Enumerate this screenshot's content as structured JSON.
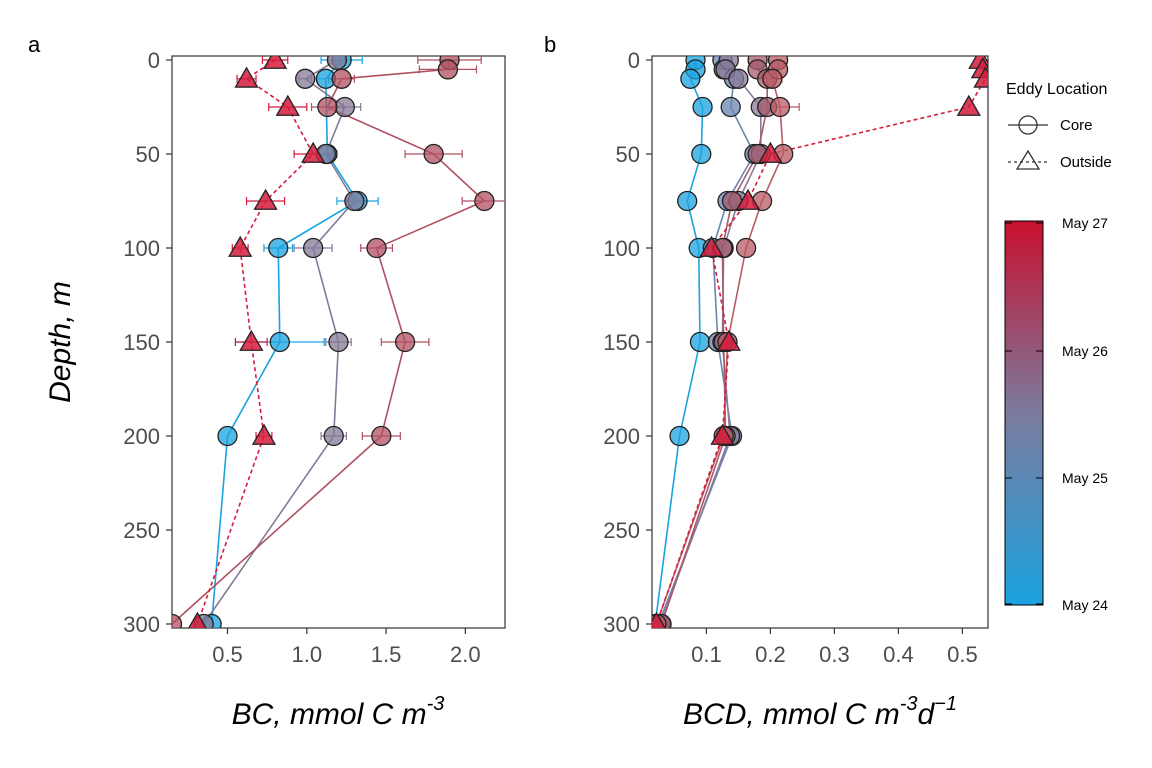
{
  "panels": {
    "a": {
      "tag": "a",
      "xlabel": "BC, mmol C m",
      "xlabel_sup": "-3"
    },
    "b": {
      "tag": "b",
      "xlabel": "BCD, mmol C m",
      "xlabel_sup1": "-3",
      "xlabel_mid": "d",
      "xlabel_sup2": "−1"
    }
  },
  "ylabel": "Depth, m",
  "legend": {
    "title": "Eddy Location",
    "items": [
      "Core",
      "Outside"
    ],
    "colorbar_labels": [
      "May 27",
      "May 26",
      "May 25",
      "May 24"
    ],
    "colorbar_colors": {
      "top": "#c8102e",
      "mid": "#7b7b9e",
      "bottom": "#1aa3e0"
    }
  },
  "chart_data": [
    {
      "panel": "a",
      "type": "scatter",
      "xlabel": "BC, mmol C m-3",
      "ylabel": "Depth, m",
      "xlim": [
        0.15,
        2.25
      ],
      "ylim": [
        300,
        0
      ],
      "x_ticks": [
        0.5,
        1.0,
        1.5,
        2.0
      ],
      "x_tick_labels": [
        "0.5",
        "1.0",
        "1.5",
        "2.0"
      ],
      "y_ticks": [
        0,
        50,
        100,
        150,
        200,
        250,
        300
      ],
      "y_tick_labels": [
        "0",
        "50",
        "100",
        "150",
        "200",
        "250",
        "300"
      ],
      "series": [
        {
          "location": "Core",
          "date": "May 24",
          "color": "#1aa3e0",
          "depth": [
            0,
            10,
            50,
            75,
            100,
            150,
            200,
            300
          ],
          "x": [
            1.22,
            1.12,
            1.13,
            1.32,
            0.82,
            0.83,
            0.5,
            0.4
          ],
          "err": [
            0.13,
            0.05,
            0.06,
            0.13,
            0.09,
            0.28,
            0,
            0
          ]
        },
        {
          "location": "Core",
          "date": "May 25",
          "color": "#857a96",
          "depth": [
            0,
            10,
            25,
            50,
            75,
            100,
            150,
            200,
            300
          ],
          "x": [
            1.19,
            0.99,
            1.24,
            1.12,
            1.3,
            1.04,
            1.2,
            1.17,
            0.35
          ],
          "err": [
            0.05,
            0.04,
            0.1,
            0.05,
            0.05,
            0.12,
            0.08,
            0.08,
            0
          ]
        },
        {
          "location": "Core",
          "date": "May 26",
          "color": "#b05060",
          "depth": [
            0,
            5,
            10,
            25,
            50,
            75,
            100,
            150,
            200,
            300
          ],
          "x": [
            1.9,
            1.89,
            1.22,
            1.13,
            1.8,
            2.12,
            1.44,
            1.62,
            1.47,
            0.15
          ],
          "err": [
            0.2,
            0.18,
            0.08,
            0.1,
            0.18,
            0.14,
            0.1,
            0.15,
            0.12,
            0
          ]
        },
        {
          "location": "Outside",
          "date": "May 27",
          "color": "#d41c3c",
          "depth": [
            0,
            10,
            25,
            50,
            75,
            100,
            150,
            200,
            300
          ],
          "x": [
            0.8,
            0.62,
            0.88,
            1.04,
            0.74,
            0.58,
            0.65,
            0.73,
            0.31
          ],
          "err": [
            0.08,
            0.06,
            0.12,
            0.12,
            0.12,
            0.05,
            0.1,
            0.05,
            0
          ]
        }
      ]
    },
    {
      "panel": "b",
      "type": "scatter",
      "xlabel": "BCD, mmol C m-3 d-1",
      "ylabel": "Depth, m",
      "xlim": [
        0.015,
        0.54
      ],
      "ylim": [
        300,
        0
      ],
      "x_ticks": [
        0.1,
        0.2,
        0.3,
        0.4,
        0.5
      ],
      "x_tick_labels": [
        "0.1",
        "0.2",
        "0.3",
        "0.4",
        "0.5"
      ],
      "y_ticks": [
        0,
        50,
        100,
        150,
        200,
        250,
        300
      ],
      "y_tick_labels": [
        "0",
        "50",
        "100",
        "150",
        "200",
        "250",
        "300"
      ],
      "series": [
        {
          "location": "Core",
          "date": "May 24",
          "color": "#1aa3e0",
          "depth": [
            0,
            5,
            10,
            25,
            50,
            75,
            100,
            150,
            200,
            300
          ],
          "x": [
            0.083,
            0.083,
            0.075,
            0.094,
            0.092,
            0.07,
            0.088,
            0.09,
            0.058,
            0.02
          ],
          "err": [
            0,
            0,
            0,
            0,
            0,
            0,
            0,
            0,
            0,
            0
          ]
        },
        {
          "location": "Core",
          "date": "May 24",
          "color": "#6a86b0",
          "depth": [
            0,
            5,
            10,
            25,
            50,
            75,
            100,
            150,
            200,
            300
          ],
          "x": [
            0.125,
            0.127,
            0.143,
            0.138,
            0.175,
            0.133,
            0.11,
            0.118,
            0.14,
            0.025
          ],
          "err": [
            0,
            0,
            0,
            0,
            0,
            0,
            0,
            0,
            0,
            0
          ]
        },
        {
          "location": "Core",
          "date": "May 25",
          "color": "#8a7a98",
          "depth": [
            0,
            5,
            10,
            25,
            50,
            75,
            100,
            150,
            200,
            300
          ],
          "x": [
            0.135,
            0.13,
            0.15,
            0.185,
            0.185,
            0.15,
            0.127,
            0.125,
            0.137,
            0.028
          ],
          "err": [
            0,
            0,
            0,
            0,
            0,
            0,
            0,
            0,
            0,
            0
          ]
        },
        {
          "location": "Core",
          "date": "May 26",
          "color": "#a65c6c",
          "depth": [
            0,
            5,
            10,
            25,
            50,
            75,
            100,
            150,
            200,
            300
          ],
          "x": [
            0.18,
            0.18,
            0.195,
            0.195,
            0.18,
            0.14,
            0.125,
            0.127,
            0.13,
            0.03
          ],
          "err": [
            0,
            0,
            0,
            0,
            0,
            0,
            0,
            0,
            0,
            0
          ]
        },
        {
          "location": "Core",
          "date": "May 26",
          "color": "#b95a64",
          "depth": [
            0,
            5,
            10,
            25,
            50,
            75,
            100,
            150,
            200,
            300
          ],
          "x": [
            0.212,
            0.212,
            0.203,
            0.215,
            0.22,
            0.187,
            0.162,
            0.133,
            0.127,
            0.022
          ],
          "err": [
            0,
            0,
            0.015,
            0.03,
            0,
            0,
            0,
            0,
            0,
            0
          ]
        },
        {
          "location": "Outside",
          "date": "May 27",
          "color": "#d41c3c",
          "depth": [
            0,
            5,
            10,
            25,
            50,
            75,
            100,
            150,
            200,
            300
          ],
          "x": [
            0.528,
            0.532,
            0.536,
            0.51,
            0.2,
            0.165,
            0.108,
            0.135,
            0.125,
            0.022
          ],
          "err": [
            0,
            0,
            0,
            0,
            0,
            0,
            0,
            0,
            0,
            0
          ]
        }
      ]
    }
  ]
}
